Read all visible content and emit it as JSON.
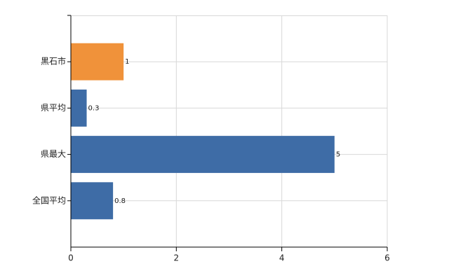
{
  "chart_data": {
    "type": "hbar",
    "categories": [
      "黒石市",
      "県平均",
      "県最大",
      "全国平均"
    ],
    "values": [
      1,
      0.3,
      5,
      0.8
    ],
    "colors": [
      "#f0923a",
      "#3e6ca6",
      "#3e6ca6",
      "#3e6ca6"
    ],
    "xlim": [
      0,
      6
    ],
    "xticks": [
      0,
      2,
      4,
      6
    ],
    "grid": true
  }
}
